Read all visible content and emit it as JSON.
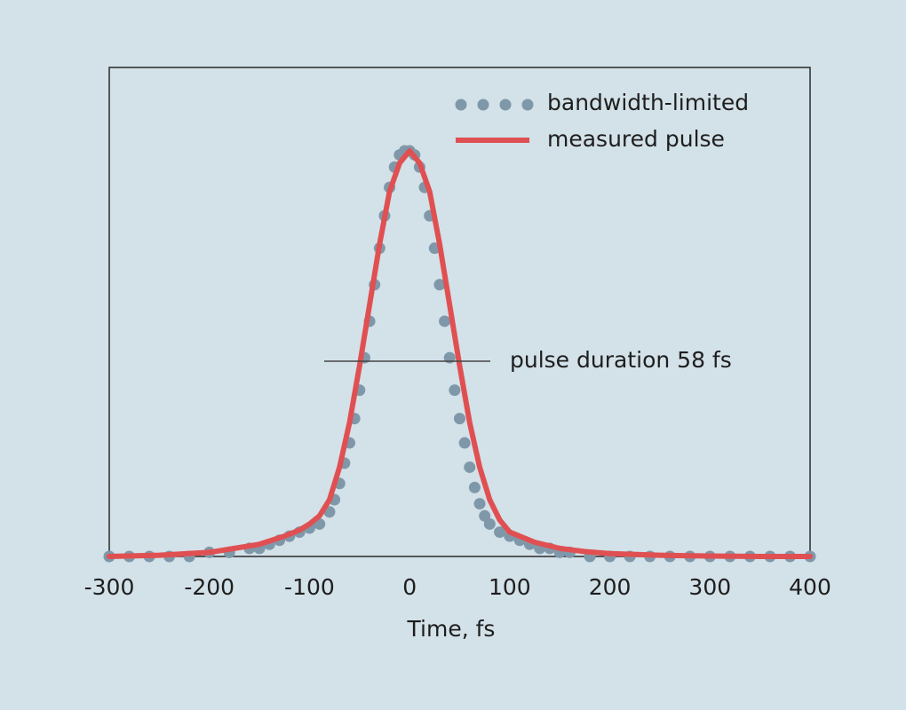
{
  "chart_data": {
    "type": "line",
    "xlabel": "Time, fs",
    "ylabel": "",
    "xlim": [
      -300,
      400
    ],
    "x_ticks": [
      -300,
      -200,
      -100,
      0,
      100,
      200,
      300,
      400
    ],
    "grid": false,
    "legend_position": "top-right",
    "annotation": "pulse duration 58 fs",
    "annotation_fwhm": 58,
    "series": [
      {
        "name": "bandwidth-limited",
        "style": "dots",
        "color": "#7f98a9",
        "x": [
          -300,
          -280,
          -260,
          -240,
          -220,
          -200,
          -180,
          -160,
          -150,
          -140,
          -130,
          -120,
          -110,
          -100,
          -90,
          -80,
          -75,
          -70,
          -65,
          -60,
          -55,
          -50,
          -45,
          -40,
          -35,
          -30,
          -25,
          -20,
          -15,
          -10,
          -5,
          0,
          5,
          10,
          15,
          20,
          25,
          30,
          35,
          40,
          45,
          50,
          55,
          60,
          65,
          70,
          75,
          80,
          90,
          100,
          110,
          120,
          130,
          140,
          150,
          160,
          180,
          200,
          220,
          240,
          260,
          280,
          300,
          320,
          340,
          360,
          380,
          400
        ],
        "y": [
          0,
          0,
          0,
          0,
          0,
          0.01,
          0.01,
          0.02,
          0.02,
          0.03,
          0.04,
          0.05,
          0.06,
          0.07,
          0.08,
          0.11,
          0.14,
          0.18,
          0.23,
          0.28,
          0.34,
          0.41,
          0.49,
          0.58,
          0.67,
          0.76,
          0.84,
          0.91,
          0.96,
          0.99,
          1,
          1,
          0.99,
          0.96,
          0.91,
          0.84,
          0.76,
          0.67,
          0.58,
          0.49,
          0.41,
          0.34,
          0.28,
          0.22,
          0.17,
          0.13,
          0.1,
          0.08,
          0.06,
          0.05,
          0.04,
          0.03,
          0.02,
          0.02,
          0.01,
          0.01,
          0,
          0,
          0,
          0,
          0,
          0,
          0,
          0,
          0,
          0,
          0,
          0
        ]
      },
      {
        "name": "measured pulse",
        "style": "line",
        "color": "#e05052",
        "x": [
          -300,
          -250,
          -200,
          -175,
          -150,
          -125,
          -110,
          -100,
          -90,
          -80,
          -70,
          -60,
          -50,
          -40,
          -30,
          -20,
          -10,
          0,
          10,
          20,
          30,
          40,
          50,
          60,
          70,
          80,
          90,
          100,
          125,
          150,
          175,
          200,
          250,
          300,
          350,
          400
        ],
        "y": [
          0,
          0.003,
          0.01,
          0.02,
          0.03,
          0.05,
          0.065,
          0.08,
          0.1,
          0.14,
          0.22,
          0.33,
          0.47,
          0.62,
          0.77,
          0.9,
          0.97,
          1,
          0.97,
          0.9,
          0.77,
          0.62,
          0.47,
          0.33,
          0.22,
          0.14,
          0.09,
          0.06,
          0.035,
          0.02,
          0.012,
          0.007,
          0.003,
          0.001,
          0,
          0
        ]
      }
    ]
  }
}
